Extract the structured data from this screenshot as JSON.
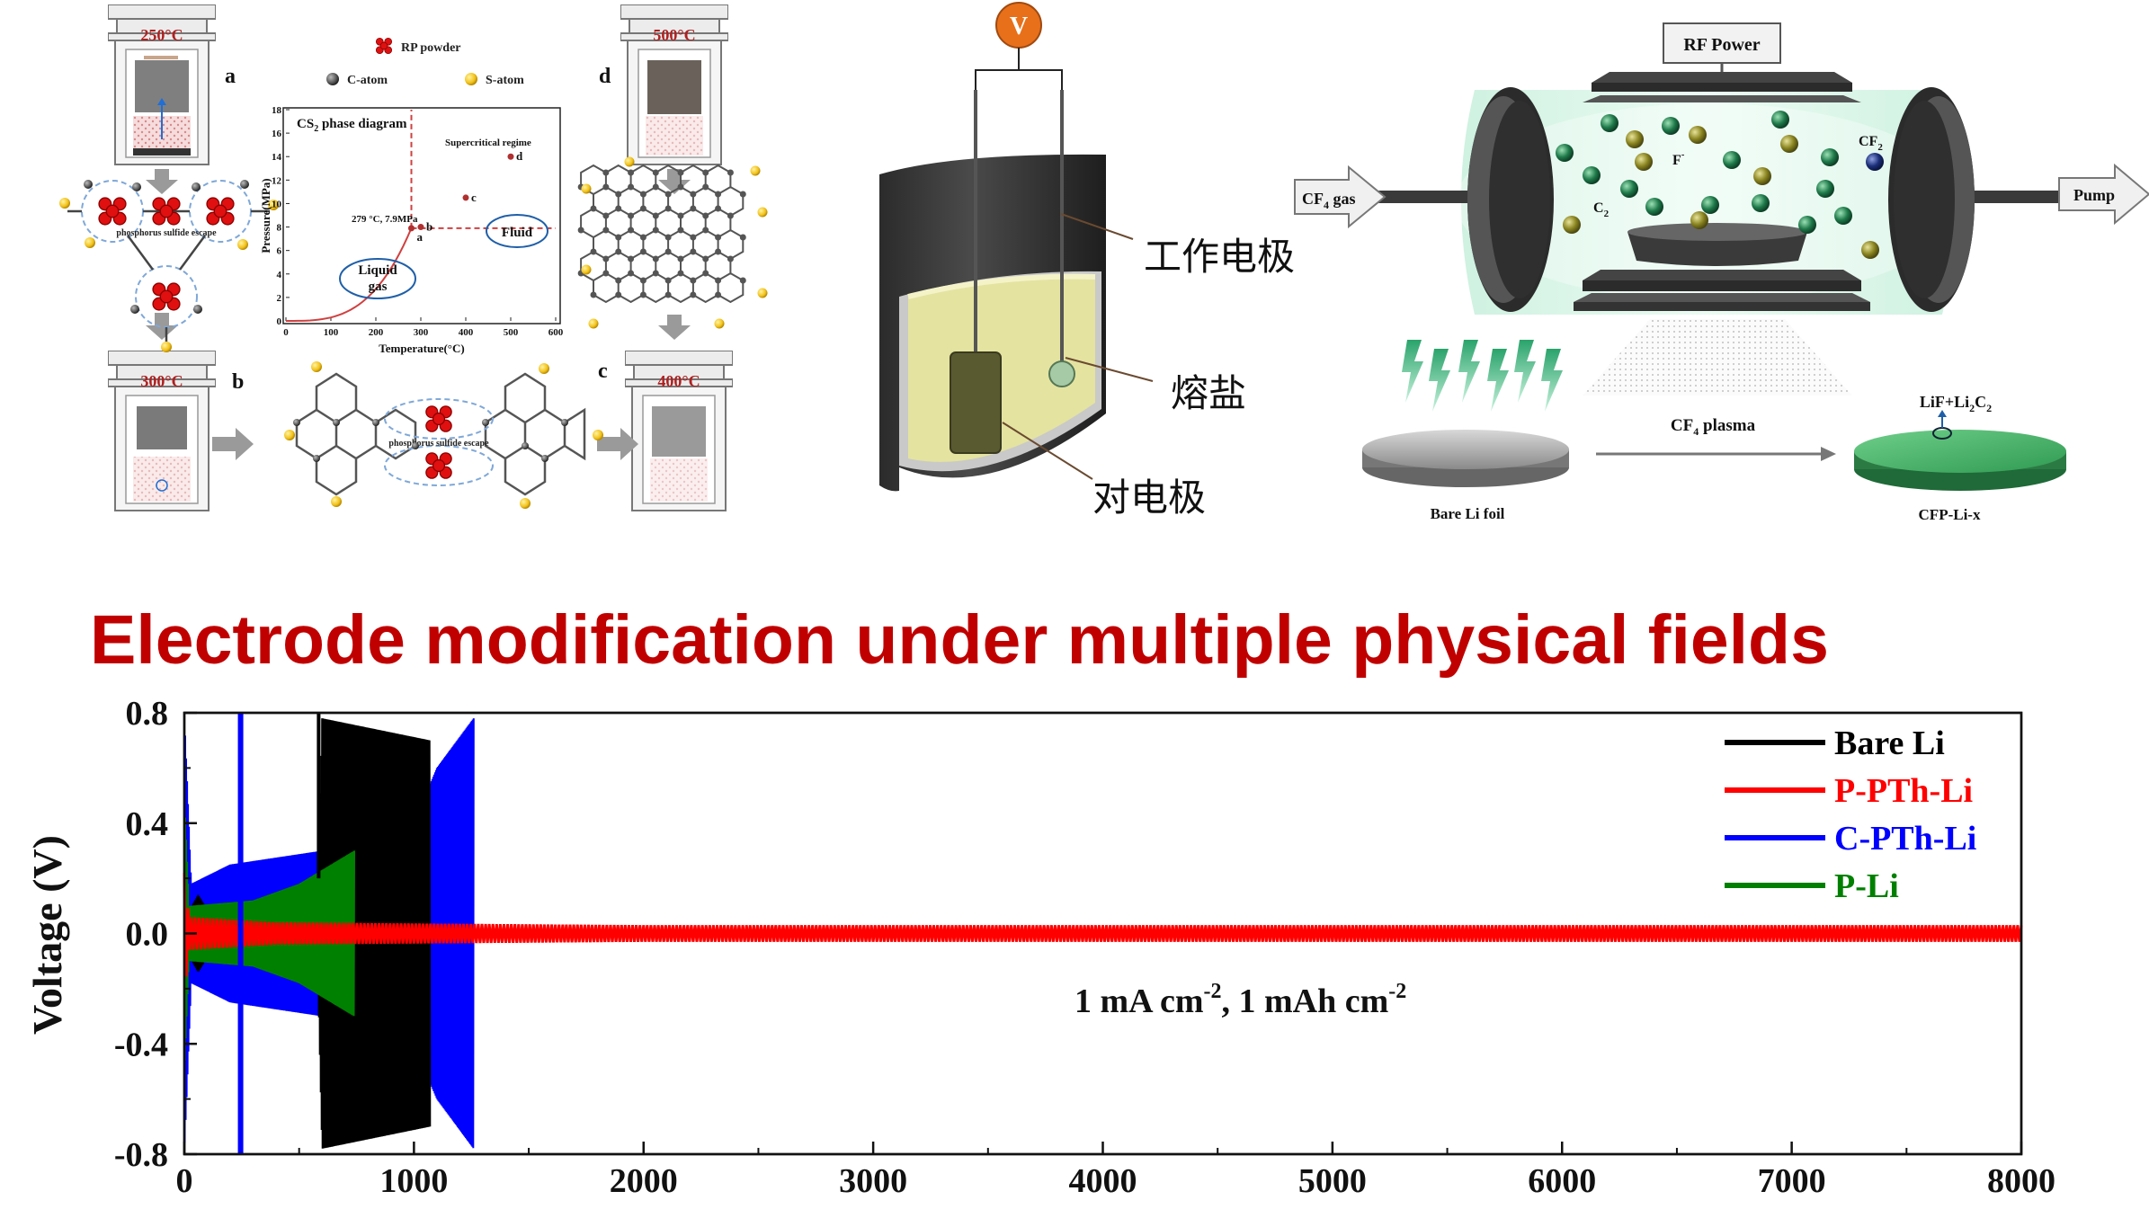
{
  "headline": "Electrode modification under multiple physical fields",
  "panel_left": {
    "vessels": [
      {
        "temp": "250°C",
        "letter": "a"
      },
      {
        "temp": "300°C",
        "letter": "b"
      },
      {
        "temp": "400°C",
        "letter": "c"
      },
      {
        "temp": "500°C",
        "letter": "d"
      }
    ],
    "legend": {
      "rp_powder": "RP powder",
      "c_atom": "C-atom",
      "s_atom": "S-atom"
    },
    "escape_label": "phosphorus sulfide escape",
    "phase_diagram": {
      "title": "CS",
      "title_sub": "2",
      "title_rest": " phase diagram",
      "xlabel": "Temperature(°C)",
      "ylabel": "Pressure(MPa)",
      "xticks": [
        "0",
        "100",
        "200",
        "300",
        "400",
        "500",
        "600"
      ],
      "yticks": [
        "0",
        "2",
        "4",
        "6",
        "8",
        "10",
        "12",
        "14",
        "16",
        "18"
      ],
      "critical_point": "279 °C, 7.9MPa",
      "supercritical": "Supercritical regime",
      "liquid": "Liquid",
      "gas": "gas",
      "fluid": "Fluid",
      "points": [
        {
          "label": "a",
          "t": 279,
          "p": 7.9
        },
        {
          "label": "b",
          "t": 300,
          "p": 8.0
        },
        {
          "label": "c",
          "t": 400,
          "p": 10.5
        },
        {
          "label": "d",
          "t": 500,
          "p": 14.0
        }
      ]
    }
  },
  "panel_middle": {
    "voltmeter": "V",
    "working_electrode": "工作电极",
    "molten_salt": "熔盐",
    "counter_electrode": "对电极"
  },
  "panel_right": {
    "rf_power": "RF Power",
    "cf4_gas": "CF",
    "cf4_gas_sub": "4",
    "cf4_gas_rest": " gas",
    "pump": "Pump",
    "f_label": "F",
    "f_sup": "-",
    "c2_label": "C",
    "c2_sub": "2",
    "cf2_label": "CF",
    "cf2_sub": "2",
    "plasma_label": "CF",
    "plasma_sub": "4",
    "plasma_rest": " plasma",
    "bare_li": "Bare Li foil",
    "product_a": "LiF+Li",
    "product_sub": "2",
    "product_b": "C",
    "product_sub2": "2",
    "cfp": "CFP-Li-x"
  },
  "chart_data": {
    "type": "line",
    "xlabel": "",
    "ylabel": "Voltage (V)",
    "xlim": [
      0,
      8000
    ],
    "ylim": [
      -0.8,
      0.8
    ],
    "xticks": [
      "0",
      "1000",
      "2000",
      "3000",
      "4000",
      "5000",
      "6000",
      "7000",
      "8000"
    ],
    "yticks": [
      "0.8",
      "0.4",
      "0.0",
      "-0.4",
      "-0.8"
    ],
    "annotation": {
      "a": "1 mA cm",
      "sup1": "-2",
      "b": ", 1 mAh cm",
      "sup2": "-2"
    },
    "legend_position": "top-right",
    "series": [
      {
        "name": "Bare Li",
        "color": "#000000",
        "x_end": 1070,
        "envelope": [
          [
            0,
            0.05
          ],
          [
            60,
            0.14
          ],
          [
            120,
            0.06
          ],
          [
            300,
            0.07
          ],
          [
            580,
            0.1
          ],
          [
            600,
            0.78
          ],
          [
            1070,
            0.7
          ]
        ]
      },
      {
        "name": "P-PTh-Li",
        "color": "#ff0000",
        "x_end": 8000,
        "envelope": [
          [
            0,
            0.22
          ],
          [
            20,
            0.06
          ],
          [
            400,
            0.04
          ],
          [
            2000,
            0.03
          ],
          [
            8000,
            0.03
          ]
        ]
      },
      {
        "name": "C-PTh-Li",
        "color": "#0000ff",
        "x_end": 1260,
        "envelope": [
          [
            0,
            0.8
          ],
          [
            30,
            0.18
          ],
          [
            200,
            0.25
          ],
          [
            600,
            0.3
          ],
          [
            1000,
            0.4
          ],
          [
            1100,
            0.6
          ],
          [
            1260,
            0.78
          ]
        ]
      },
      {
        "name": "P-Li",
        "color": "#008000",
        "x_end": 740,
        "envelope": [
          [
            0,
            0.5
          ],
          [
            20,
            0.1
          ],
          [
            300,
            0.12
          ],
          [
            500,
            0.18
          ],
          [
            740,
            0.3
          ]
        ]
      }
    ]
  },
  "colors": {
    "headline": "#c00000",
    "plasma_green": "#2e8b57",
    "salt": "#e4e3a0"
  }
}
